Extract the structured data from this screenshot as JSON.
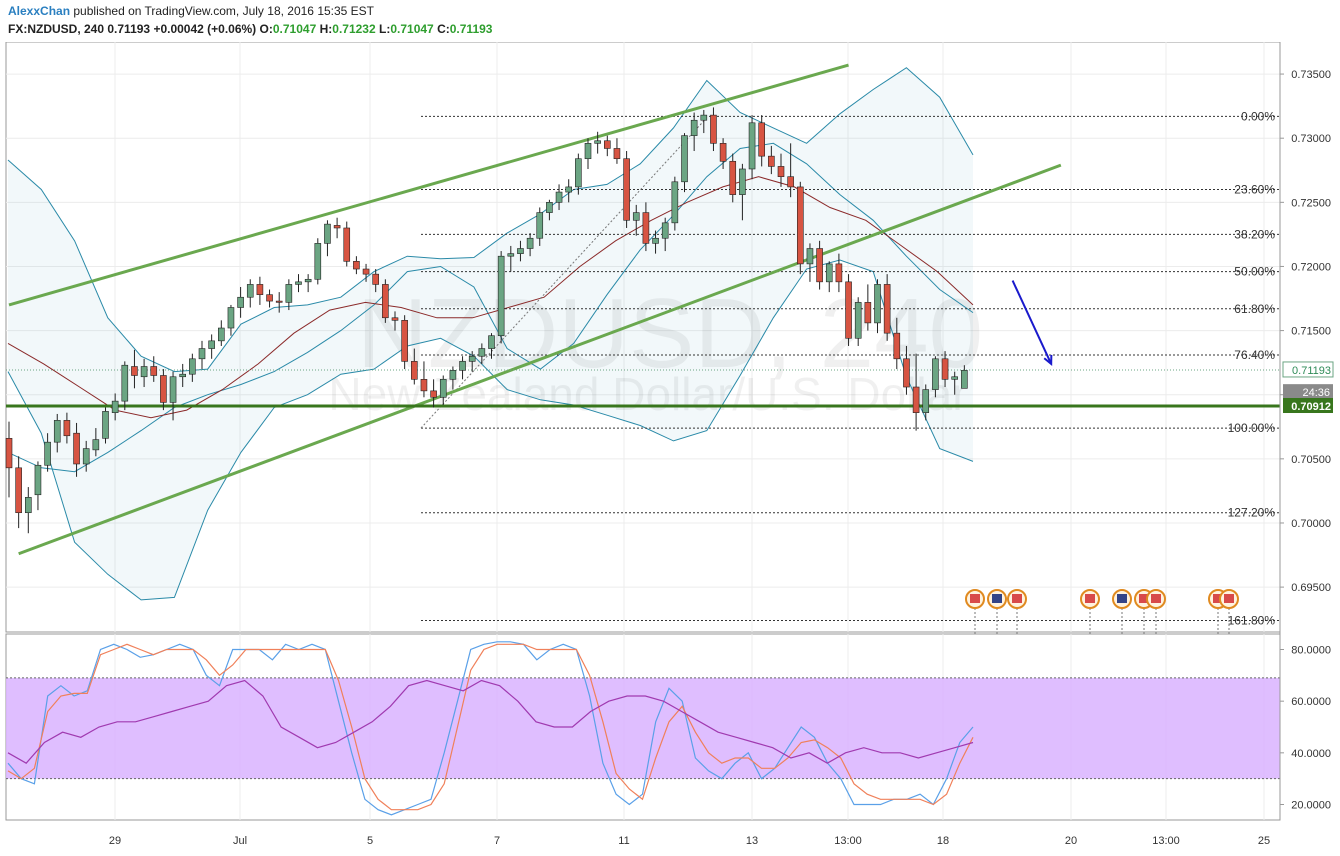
{
  "header": {
    "author": "AlexxChan",
    "published": "published on TradingView.com, July 18, 2016 15:35 EST",
    "symbol": "FX:NZDUSD, 240",
    "last": "0.71193",
    "change": "+0.00042 (+0.06%)",
    "o_label": "O:",
    "o_value": "0.71047",
    "h_label": "H:",
    "h_value": "0.71232",
    "l_label": "L:",
    "l_value": "0.71047",
    "c_label": "C:",
    "c_value": "0.71193"
  },
  "watermark": {
    "symbol": "NZDUSD, 240",
    "name": "New Zealand Dollar/U.S. Dollar"
  },
  "colors": {
    "bull": "#6ba583",
    "bear": "#d75442",
    "trend": "#6aa84f",
    "support": "#38761d",
    "bollinger": "#2a8aa8",
    "ma": "#8b2a2a",
    "stoch_band": "#d9b3ff",
    "stoch_k": "#5aa0e8",
    "stoch_d": "#f0805a",
    "rsi": "#a03ab0",
    "arrow": "#1a1acc"
  },
  "chart_data": {
    "type": "candlestick",
    "symbol": "FX:NZDUSD",
    "timeframe": "240",
    "ylim": [
      0.6915,
      0.7375
    ],
    "y_ticks": [
      "0.73500",
      "0.73000",
      "0.72500",
      "0.72000",
      "0.71500",
      "0.71000",
      "0.70500",
      "0.70000",
      "0.69500"
    ],
    "x_tick_labels": [
      "29",
      "Jul",
      "5",
      "7",
      "11",
      "13",
      "13:00",
      "18",
      "20",
      "13:00",
      "25"
    ],
    "candles": [
      [
        0.7066,
        0.7079,
        0.702,
        0.7043
      ],
      [
        0.7043,
        0.7052,
        0.6996,
        0.7008
      ],
      [
        0.7008,
        0.7028,
        0.6992,
        0.702
      ],
      [
        0.7022,
        0.7048,
        0.701,
        0.7045
      ],
      [
        0.7045,
        0.707,
        0.704,
        0.7063
      ],
      [
        0.7063,
        0.7085,
        0.7055,
        0.708
      ],
      [
        0.708,
        0.7086,
        0.7062,
        0.7068
      ],
      [
        0.707,
        0.7078,
        0.7036,
        0.7046
      ],
      [
        0.7046,
        0.7064,
        0.704,
        0.7058
      ],
      [
        0.7057,
        0.7074,
        0.7052,
        0.7065
      ],
      [
        0.7066,
        0.709,
        0.7062,
        0.7087
      ],
      [
        0.7086,
        0.7101,
        0.708,
        0.7095
      ],
      [
        0.7095,
        0.7126,
        0.7088,
        0.7123
      ],
      [
        0.7122,
        0.7135,
        0.7105,
        0.7115
      ],
      [
        0.7114,
        0.7128,
        0.7106,
        0.7122
      ],
      [
        0.7122,
        0.713,
        0.711,
        0.7115
      ],
      [
        0.7115,
        0.712,
        0.7088,
        0.7094
      ],
      [
        0.7094,
        0.7118,
        0.708,
        0.7114
      ],
      [
        0.7114,
        0.7124,
        0.7106,
        0.7116
      ],
      [
        0.7116,
        0.7132,
        0.711,
        0.7128
      ],
      [
        0.7128,
        0.7142,
        0.712,
        0.7136
      ],
      [
        0.7136,
        0.7147,
        0.7128,
        0.7142
      ],
      [
        0.7142,
        0.7158,
        0.7138,
        0.7152
      ],
      [
        0.7152,
        0.717,
        0.7146,
        0.7168
      ],
      [
        0.7168,
        0.7184,
        0.716,
        0.7176
      ],
      [
        0.7176,
        0.719,
        0.7168,
        0.7186
      ],
      [
        0.7186,
        0.7192,
        0.717,
        0.7178
      ],
      [
        0.7178,
        0.7182,
        0.7168,
        0.7173
      ],
      [
        0.7173,
        0.718,
        0.7164,
        0.7172
      ],
      [
        0.7172,
        0.719,
        0.7166,
        0.7186
      ],
      [
        0.7186,
        0.7194,
        0.718,
        0.7188
      ],
      [
        0.7188,
        0.7194,
        0.718,
        0.719
      ],
      [
        0.719,
        0.7222,
        0.7186,
        0.7218
      ],
      [
        0.7218,
        0.7236,
        0.7208,
        0.7233
      ],
      [
        0.7232,
        0.7238,
        0.7222,
        0.723
      ],
      [
        0.723,
        0.7235,
        0.72,
        0.7204
      ],
      [
        0.7204,
        0.7208,
        0.7194,
        0.7198
      ],
      [
        0.7198,
        0.7202,
        0.7188,
        0.7194
      ],
      [
        0.7194,
        0.7198,
        0.718,
        0.7186
      ],
      [
        0.7186,
        0.719,
        0.7156,
        0.716
      ],
      [
        0.716,
        0.7165,
        0.715,
        0.7158
      ],
      [
        0.7158,
        0.7162,
        0.712,
        0.7126
      ],
      [
        0.7126,
        0.7136,
        0.7108,
        0.7112
      ],
      [
        0.7112,
        0.7126,
        0.7098,
        0.7103
      ],
      [
        0.7103,
        0.7112,
        0.709,
        0.7098
      ],
      [
        0.7098,
        0.7115,
        0.7092,
        0.7112
      ],
      [
        0.7112,
        0.7122,
        0.7104,
        0.7119
      ],
      [
        0.7119,
        0.713,
        0.7112,
        0.7126
      ],
      [
        0.7126,
        0.7134,
        0.7118,
        0.713
      ],
      [
        0.713,
        0.714,
        0.7124,
        0.7136
      ],
      [
        0.7136,
        0.7148,
        0.7128,
        0.7146
      ],
      [
        0.7146,
        0.7212,
        0.714,
        0.7208
      ],
      [
        0.7208,
        0.7216,
        0.7196,
        0.721
      ],
      [
        0.721,
        0.722,
        0.7204,
        0.7214
      ],
      [
        0.7214,
        0.7226,
        0.7208,
        0.7222
      ],
      [
        0.7222,
        0.7246,
        0.7216,
        0.7242
      ],
      [
        0.7242,
        0.7252,
        0.7236,
        0.725
      ],
      [
        0.725,
        0.7264,
        0.7244,
        0.7258
      ],
      [
        0.7258,
        0.7268,
        0.725,
        0.7262
      ],
      [
        0.7262,
        0.7288,
        0.7256,
        0.7284
      ],
      [
        0.7284,
        0.73,
        0.7276,
        0.7296
      ],
      [
        0.7296,
        0.7305,
        0.7288,
        0.7298
      ],
      [
        0.7298,
        0.7302,
        0.7286,
        0.7292
      ],
      [
        0.7292,
        0.73,
        0.728,
        0.7284
      ],
      [
        0.7284,
        0.729,
        0.723,
        0.7236
      ],
      [
        0.7236,
        0.7248,
        0.7224,
        0.7242
      ],
      [
        0.7242,
        0.725,
        0.7212,
        0.7218
      ],
      [
        0.7218,
        0.7228,
        0.721,
        0.7222
      ],
      [
        0.7222,
        0.7238,
        0.7212,
        0.7234
      ],
      [
        0.7234,
        0.727,
        0.7228,
        0.7266
      ],
      [
        0.7266,
        0.7304,
        0.7258,
        0.7302
      ],
      [
        0.7302,
        0.732,
        0.729,
        0.7314
      ],
      [
        0.7314,
        0.7322,
        0.7304,
        0.7318
      ],
      [
        0.7318,
        0.7324,
        0.729,
        0.7296
      ],
      [
        0.7296,
        0.73,
        0.7276,
        0.7282
      ],
      [
        0.7282,
        0.7288,
        0.725,
        0.7256
      ],
      [
        0.7256,
        0.728,
        0.7236,
        0.7276
      ],
      [
        0.7276,
        0.7318,
        0.7268,
        0.7312
      ],
      [
        0.7312,
        0.7318,
        0.7278,
        0.7286
      ],
      [
        0.7286,
        0.7294,
        0.7272,
        0.7278
      ],
      [
        0.7278,
        0.7288,
        0.7262,
        0.727
      ],
      [
        0.727,
        0.7296,
        0.7254,
        0.7262
      ],
      [
        0.7262,
        0.7266,
        0.7194,
        0.7202
      ],
      [
        0.7202,
        0.7218,
        0.7188,
        0.7214
      ],
      [
        0.7214,
        0.722,
        0.7182,
        0.7188
      ],
      [
        0.7188,
        0.7204,
        0.718,
        0.7202
      ],
      [
        0.7202,
        0.721,
        0.718,
        0.7188
      ],
      [
        0.7188,
        0.7194,
        0.7138,
        0.7144
      ],
      [
        0.7144,
        0.7176,
        0.7138,
        0.7172
      ],
      [
        0.7172,
        0.7186,
        0.715,
        0.7156
      ],
      [
        0.7156,
        0.719,
        0.7148,
        0.7186
      ],
      [
        0.7186,
        0.7194,
        0.7142,
        0.7148
      ],
      [
        0.7148,
        0.716,
        0.712,
        0.7128
      ],
      [
        0.7128,
        0.7138,
        0.71,
        0.7106
      ],
      [
        0.7106,
        0.7132,
        0.7072,
        0.7086
      ],
      [
        0.7086,
        0.7108,
        0.708,
        0.7104
      ],
      [
        0.7104,
        0.713,
        0.7098,
        0.7128
      ],
      [
        0.7128,
        0.7134,
        0.7106,
        0.7112
      ],
      [
        0.7112,
        0.7118,
        0.71,
        0.7114
      ],
      [
        0.7105,
        0.7123,
        0.7105,
        0.7119
      ]
    ],
    "bollinger": {
      "upper": [
        0.7283,
        0.726,
        0.722,
        0.716,
        0.713,
        0.7118,
        0.712,
        0.7155,
        0.7168,
        0.717,
        0.7176,
        0.7196,
        0.7208,
        0.7206,
        0.7207,
        0.7226,
        0.7241,
        0.726,
        0.7264,
        0.728,
        0.7308,
        0.7345,
        0.732,
        0.7308,
        0.7296,
        0.7319,
        0.7338,
        0.7355,
        0.7332,
        0.7287
      ],
      "middle": [
        0.7055,
        0.7043,
        0.704,
        0.7055,
        0.7072,
        0.709,
        0.71,
        0.7108,
        0.7118,
        0.7133,
        0.715,
        0.717,
        0.7196,
        0.72,
        0.7184,
        0.7136,
        0.712,
        0.714,
        0.7178,
        0.7213,
        0.724,
        0.727,
        0.7292,
        0.7296,
        0.728,
        0.7256,
        0.7236,
        0.7208,
        0.7182,
        0.7164
      ],
      "lower": [
        0.7118,
        0.707,
        0.6985,
        0.696,
        0.694,
        0.6942,
        0.701,
        0.7055,
        0.709,
        0.71,
        0.7116,
        0.712,
        0.7138,
        0.7144,
        0.713,
        0.7104,
        0.7096,
        0.7092,
        0.7084,
        0.7076,
        0.7064,
        0.7072,
        0.7115,
        0.716,
        0.7198,
        0.7205,
        0.7196,
        0.7114,
        0.7058,
        0.7048
      ]
    },
    "moving_average": [
      0.714,
      0.7124,
      0.7106,
      0.7088,
      0.7082,
      0.7088,
      0.7104,
      0.7124,
      0.7148,
      0.7166,
      0.7172,
      0.7168,
      0.716,
      0.716,
      0.7168,
      0.7176,
      0.72,
      0.722,
      0.7236,
      0.725,
      0.7262,
      0.727,
      0.7262,
      0.7246,
      0.7236,
      0.7216,
      0.7196,
      0.717
    ],
    "trend_lines": [
      {
        "from": [
          0,
          0.717
        ],
        "to": [
          87,
          0.7357
        ]
      },
      {
        "from": [
          1,
          0.6976
        ],
        "to": [
          109,
          0.7279
        ]
      }
    ],
    "support_line": 0.70912,
    "fibonacci": [
      {
        "label": "0.00%",
        "value": 0.7317
      },
      {
        "label": "23.60%",
        "value": 0.726
      },
      {
        "label": "38.20%",
        "value": 0.7225
      },
      {
        "label": "50.00%",
        "value": 0.7196
      },
      {
        "label": "61.80%",
        "value": 0.7167
      },
      {
        "label": "76.40%",
        "value": 0.7131
      },
      {
        "label": "100.00%",
        "value": 0.7074
      },
      {
        "label": "127.20%",
        "value": 0.7008
      },
      {
        "label": "161.80%",
        "value": 0.6924
      }
    ],
    "price_labels": [
      {
        "text": "0.71193",
        "value": 0.71193
      },
      {
        "text": "24:36",
        "value": 0.7102
      },
      {
        "text": "0.70912",
        "value": 0.70912
      }
    ],
    "stochastic": {
      "y_ticks": [
        "80.0000",
        "60.0000",
        "40.0000",
        "20.0000"
      ],
      "ylim": [
        14,
        86
      ],
      "band": [
        30,
        69
      ],
      "k": [
        36,
        30,
        28,
        62,
        66,
        62,
        64,
        80,
        82,
        80,
        77,
        78,
        80,
        82,
        80,
        70,
        66,
        80,
        80,
        80,
        76,
        82,
        80,
        82,
        80,
        60,
        40,
        22,
        18,
        16,
        18,
        20,
        22,
        40,
        60,
        80,
        82,
        83,
        83,
        82,
        76,
        80,
        82,
        80,
        62,
        36,
        24,
        20,
        24,
        52,
        65,
        60,
        38,
        33,
        30,
        36,
        40,
        30,
        34,
        42,
        50,
        46,
        36,
        30,
        20,
        20,
        20,
        22,
        22,
        24,
        20,
        30,
        44,
        50
      ],
      "d": [
        33,
        30,
        34,
        56,
        62,
        63,
        63,
        78,
        80,
        82,
        80,
        78,
        80,
        80,
        80,
        76,
        70,
        74,
        80,
        80,
        80,
        80,
        80,
        80,
        80,
        68,
        50,
        30,
        22,
        18,
        18,
        18,
        20,
        28,
        50,
        72,
        80,
        82,
        82,
        82,
        80,
        80,
        80,
        80,
        70,
        52,
        32,
        26,
        22,
        38,
        52,
        58,
        48,
        40,
        36,
        38,
        38,
        34,
        34,
        38,
        44,
        45,
        42,
        38,
        28,
        24,
        22,
        22,
        22,
        22,
        20,
        24,
        36,
        46
      ],
      "rsi": [
        40,
        36,
        44,
        48,
        46,
        50,
        52,
        52,
        54,
        56,
        58,
        60,
        66,
        68,
        62,
        50,
        46,
        42,
        44,
        48,
        52,
        58,
        66,
        68,
        66,
        64,
        68,
        66,
        60,
        52,
        50,
        50,
        56,
        60,
        62,
        62,
        60,
        56,
        52,
        48,
        46,
        44,
        42,
        38,
        40,
        36,
        40,
        42,
        40,
        40,
        38,
        40,
        42,
        44
      ]
    },
    "annotations": [
      {
        "type": "arrow",
        "from": [
          0.7189,
          104
        ],
        "to": [
          0.7124,
          108
        ]
      }
    ]
  }
}
